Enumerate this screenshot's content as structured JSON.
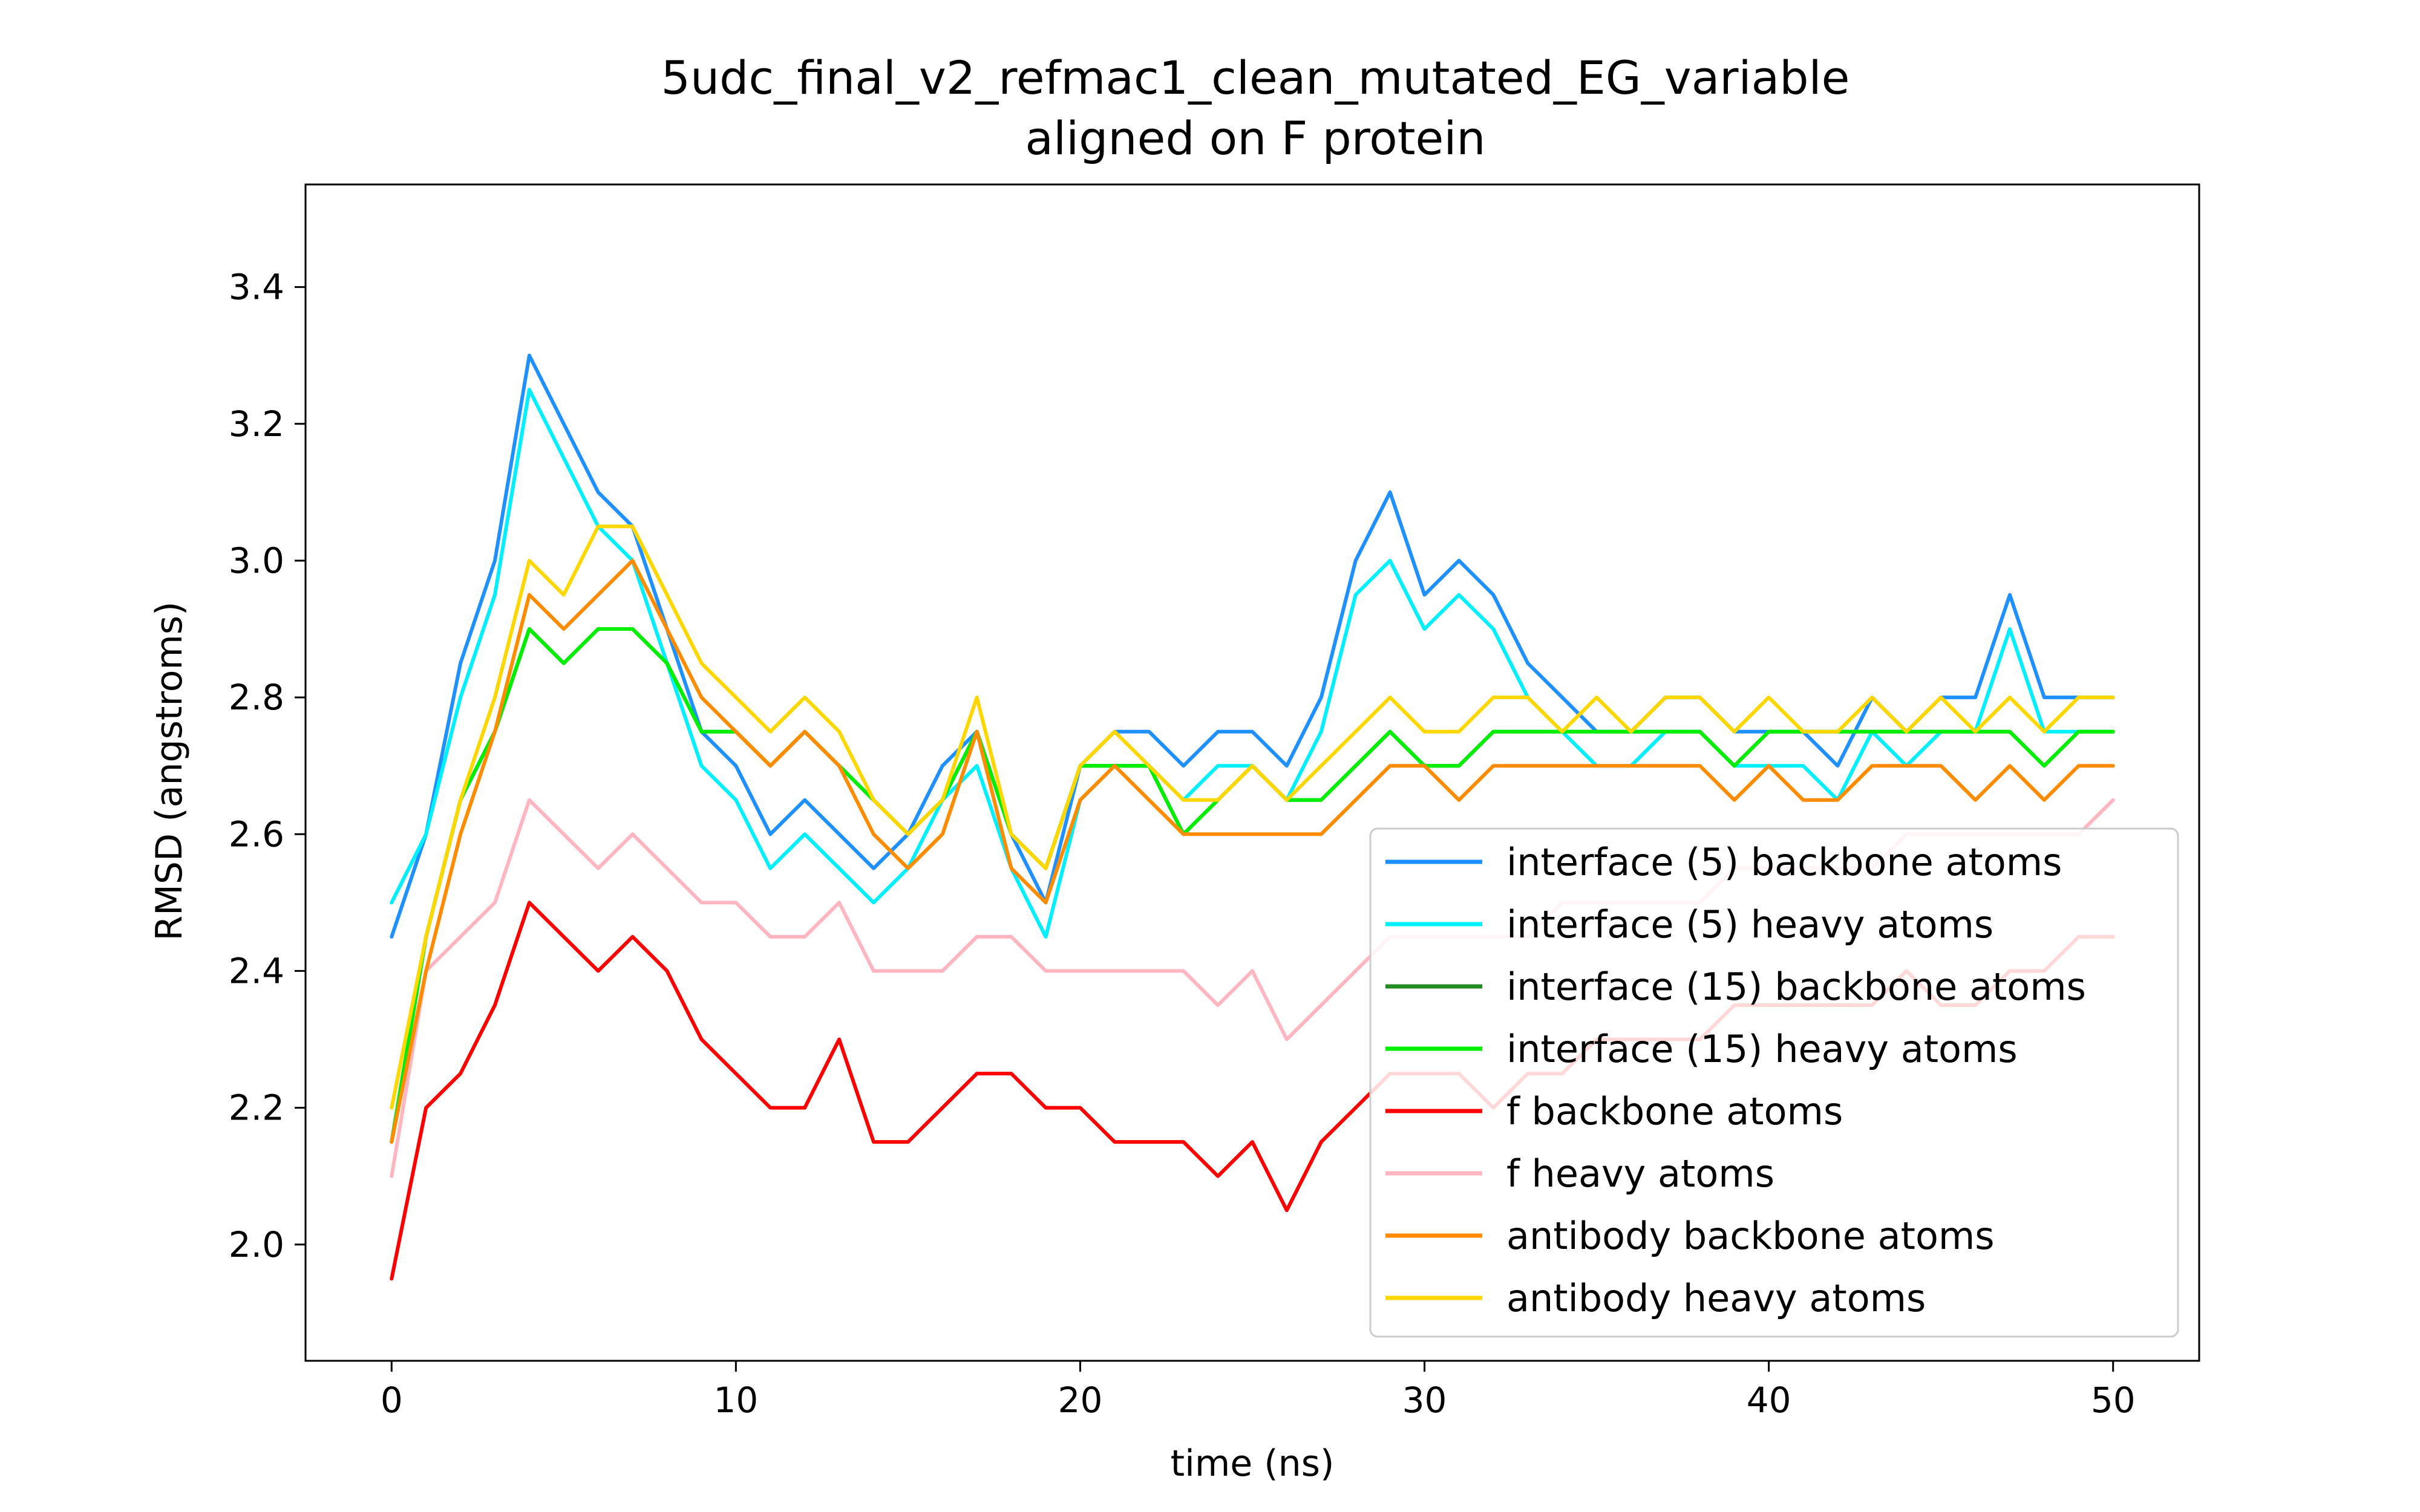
{
  "chart_data": {
    "type": "line",
    "title": [
      "5udc_final_v2_refmac1_clean_mutated_EG_variable",
      "aligned on F protein"
    ],
    "xlabel": "time (ns)",
    "ylabel": "RMSD (angstroms)",
    "xlim": [
      -2.5,
      52.5
    ],
    "ylim": [
      1.83,
      3.55
    ],
    "xticks": [
      0,
      10,
      20,
      30,
      40,
      50
    ],
    "yticks": [
      2.0,
      2.2,
      2.4,
      2.6,
      2.8,
      3.0,
      3.2,
      3.4
    ],
    "ytick_labels": [
      "2.0",
      "2.2",
      "2.4",
      "2.6",
      "2.8",
      "3.0",
      "3.2",
      "3.4"
    ],
    "grid": false,
    "legend_position": "lower-right",
    "series": [
      {
        "name": "interface (5) backbone atoms",
        "color": "#1e90ff",
        "x": [
          0,
          1,
          2,
          3,
          4,
          5,
          6,
          7,
          8,
          9,
          10,
          11,
          12,
          13,
          14,
          15,
          16,
          17,
          18,
          19,
          20,
          21,
          22,
          23,
          24,
          25,
          26,
          27,
          28,
          29,
          30,
          31,
          32,
          33,
          34,
          35,
          36,
          37,
          38,
          39,
          40,
          41,
          42,
          43,
          44,
          45,
          46,
          47,
          48,
          49,
          50
        ],
        "y": [
          2.45,
          2.6,
          2.85,
          3.0,
          3.3,
          3.2,
          3.1,
          3.05,
          2.9,
          2.75,
          2.7,
          2.6,
          2.65,
          2.6,
          2.55,
          2.6,
          2.7,
          2.75,
          2.6,
          2.5,
          2.7,
          2.75,
          2.75,
          2.7,
          2.75,
          2.75,
          2.7,
          2.8,
          3.0,
          3.1,
          2.95,
          3.0,
          2.95,
          2.85,
          2.8,
          2.75,
          2.75,
          2.8,
          2.8,
          2.75,
          2.75,
          2.75,
          2.7,
          2.8,
          2.75,
          2.8,
          2.8,
          2.95,
          2.8,
          2.8,
          2.8
        ]
      },
      {
        "name": "interface (5) heavy atoms",
        "color": "#00f0ff",
        "x": [
          0,
          1,
          2,
          3,
          4,
          5,
          6,
          7,
          8,
          9,
          10,
          11,
          12,
          13,
          14,
          15,
          16,
          17,
          18,
          19,
          20,
          21,
          22,
          23,
          24,
          25,
          26,
          27,
          28,
          29,
          30,
          31,
          32,
          33,
          34,
          35,
          36,
          37,
          38,
          39,
          40,
          41,
          42,
          43,
          44,
          45,
          46,
          47,
          48,
          49,
          50
        ],
        "y": [
          2.5,
          2.6,
          2.8,
          2.95,
          3.25,
          3.15,
          3.05,
          3.0,
          2.85,
          2.7,
          2.65,
          2.55,
          2.6,
          2.55,
          2.5,
          2.55,
          2.65,
          2.7,
          2.55,
          2.45,
          2.65,
          2.7,
          2.7,
          2.65,
          2.7,
          2.7,
          2.65,
          2.75,
          2.95,
          3.0,
          2.9,
          2.95,
          2.9,
          2.8,
          2.75,
          2.7,
          2.7,
          2.75,
          2.75,
          2.7,
          2.7,
          2.7,
          2.65,
          2.75,
          2.7,
          2.75,
          2.75,
          2.9,
          2.75,
          2.75,
          2.75
        ]
      },
      {
        "name": "interface (15) backbone atoms",
        "color": "#228b22",
        "x": [
          0,
          1,
          2,
          3,
          4,
          5,
          6,
          7,
          8,
          9,
          10,
          11,
          12,
          13,
          14,
          15,
          16,
          17,
          18,
          19,
          20,
          21,
          22,
          23,
          24,
          25,
          26,
          27,
          28,
          29,
          30,
          31,
          32,
          33,
          34,
          35,
          36,
          37,
          38,
          39,
          40,
          41,
          42,
          43,
          44,
          45,
          46,
          47,
          48,
          49,
          50
        ],
        "y": [
          2.15,
          2.45,
          2.65,
          2.75,
          2.9,
          2.85,
          2.9,
          2.9,
          2.85,
          2.75,
          2.75,
          2.7,
          2.75,
          2.7,
          2.65,
          2.6,
          2.65,
          2.75,
          2.6,
          2.55,
          2.7,
          2.7,
          2.7,
          2.6,
          2.65,
          2.7,
          2.65,
          2.65,
          2.7,
          2.75,
          2.7,
          2.7,
          2.75,
          2.75,
          2.75,
          2.75,
          2.75,
          2.75,
          2.75,
          2.7,
          2.75,
          2.75,
          2.75,
          2.75,
          2.75,
          2.75,
          2.75,
          2.75,
          2.7,
          2.75,
          2.75
        ]
      },
      {
        "name": "interface (15) heavy atoms",
        "color": "#00ee00",
        "x": [
          0,
          1,
          2,
          3,
          4,
          5,
          6,
          7,
          8,
          9,
          10,
          11,
          12,
          13,
          14,
          15,
          16,
          17,
          18,
          19,
          20,
          21,
          22,
          23,
          24,
          25,
          26,
          27,
          28,
          29,
          30,
          31,
          32,
          33,
          34,
          35,
          36,
          37,
          38,
          39,
          40,
          41,
          42,
          43,
          44,
          45,
          46,
          47,
          48,
          49,
          50
        ],
        "y": [
          2.15,
          2.45,
          2.65,
          2.75,
          2.9,
          2.85,
          2.9,
          2.9,
          2.85,
          2.75,
          2.75,
          2.7,
          2.75,
          2.7,
          2.65,
          2.6,
          2.65,
          2.75,
          2.6,
          2.55,
          2.7,
          2.7,
          2.7,
          2.6,
          2.65,
          2.7,
          2.65,
          2.65,
          2.7,
          2.75,
          2.7,
          2.7,
          2.75,
          2.75,
          2.75,
          2.75,
          2.75,
          2.75,
          2.75,
          2.7,
          2.75,
          2.75,
          2.75,
          2.75,
          2.75,
          2.75,
          2.75,
          2.75,
          2.7,
          2.75,
          2.75
        ]
      },
      {
        "name": "f backbone atoms",
        "color": "#ff0000",
        "x": [
          0,
          1,
          2,
          3,
          4,
          5,
          6,
          7,
          8,
          9,
          10,
          11,
          12,
          13,
          14,
          15,
          16,
          17,
          18,
          19,
          20,
          21,
          22,
          23,
          24,
          25,
          26,
          27,
          28,
          29,
          30,
          31,
          32,
          33,
          34,
          35,
          36,
          37,
          38,
          39,
          40,
          41,
          42,
          43,
          44,
          45,
          46,
          47,
          48,
          49,
          50
        ],
        "y": [
          1.95,
          2.2,
          2.25,
          2.35,
          2.5,
          2.45,
          2.4,
          2.45,
          2.4,
          2.3,
          2.25,
          2.2,
          2.2,
          2.3,
          2.15,
          2.15,
          2.2,
          2.25,
          2.25,
          2.2,
          2.2,
          2.15,
          2.15,
          2.15,
          2.1,
          2.15,
          2.05,
          2.15,
          2.2,
          2.25,
          2.25,
          2.25,
          2.2,
          2.25,
          2.25,
          2.3,
          2.3,
          2.3,
          2.3,
          2.35,
          2.35,
          2.35,
          2.35,
          2.35,
          2.4,
          2.35,
          2.35,
          2.4,
          2.4,
          2.45,
          2.45
        ]
      },
      {
        "name": "f heavy atoms",
        "color": "#ffb6c1",
        "x": [
          0,
          1,
          2,
          3,
          4,
          5,
          6,
          7,
          8,
          9,
          10,
          11,
          12,
          13,
          14,
          15,
          16,
          17,
          18,
          19,
          20,
          21,
          22,
          23,
          24,
          25,
          26,
          27,
          28,
          29,
          30,
          31,
          32,
          33,
          34,
          35,
          36,
          37,
          38,
          39,
          40,
          41,
          42,
          43,
          44,
          45,
          46,
          47,
          48,
          49,
          50
        ],
        "y": [
          2.1,
          2.4,
          2.45,
          2.5,
          2.65,
          2.6,
          2.55,
          2.6,
          2.55,
          2.5,
          2.5,
          2.45,
          2.45,
          2.5,
          2.4,
          2.4,
          2.4,
          2.45,
          2.45,
          2.4,
          2.4,
          2.4,
          2.4,
          2.4,
          2.35,
          2.4,
          2.3,
          2.35,
          2.4,
          2.45,
          2.45,
          2.45,
          2.45,
          2.45,
          2.5,
          2.5,
          2.5,
          2.5,
          2.5,
          2.55,
          2.55,
          2.55,
          2.55,
          2.55,
          2.6,
          2.6,
          2.6,
          2.6,
          2.6,
          2.6,
          2.65
        ]
      },
      {
        "name": "antibody backbone atoms",
        "color": "#ff8c00",
        "x": [
          0,
          1,
          2,
          3,
          4,
          5,
          6,
          7,
          8,
          9,
          10,
          11,
          12,
          13,
          14,
          15,
          16,
          17,
          18,
          19,
          20,
          21,
          22,
          23,
          24,
          25,
          26,
          27,
          28,
          29,
          30,
          31,
          32,
          33,
          34,
          35,
          36,
          37,
          38,
          39,
          40,
          41,
          42,
          43,
          44,
          45,
          46,
          47,
          48,
          49,
          50
        ],
        "y": [
          2.15,
          2.4,
          2.6,
          2.75,
          2.95,
          2.9,
          2.95,
          3.0,
          2.9,
          2.8,
          2.75,
          2.7,
          2.75,
          2.7,
          2.6,
          2.55,
          2.6,
          2.75,
          2.55,
          2.5,
          2.65,
          2.7,
          2.65,
          2.6,
          2.6,
          2.6,
          2.6,
          2.6,
          2.65,
          2.7,
          2.7,
          2.65,
          2.7,
          2.7,
          2.7,
          2.7,
          2.7,
          2.7,
          2.7,
          2.65,
          2.7,
          2.65,
          2.65,
          2.7,
          2.7,
          2.7,
          2.65,
          2.7,
          2.65,
          2.7,
          2.7
        ]
      },
      {
        "name": "antibody heavy atoms",
        "color": "#ffd700",
        "x": [
          0,
          1,
          2,
          3,
          4,
          5,
          6,
          7,
          8,
          9,
          10,
          11,
          12,
          13,
          14,
          15,
          16,
          17,
          18,
          19,
          20,
          21,
          22,
          23,
          24,
          25,
          26,
          27,
          28,
          29,
          30,
          31,
          32,
          33,
          34,
          35,
          36,
          37,
          38,
          39,
          40,
          41,
          42,
          43,
          44,
          45,
          46,
          47,
          48,
          49,
          50
        ],
        "y": [
          2.2,
          2.45,
          2.65,
          2.8,
          3.0,
          2.95,
          3.05,
          3.05,
          2.95,
          2.85,
          2.8,
          2.75,
          2.8,
          2.75,
          2.65,
          2.6,
          2.65,
          2.8,
          2.6,
          2.55,
          2.7,
          2.75,
          2.7,
          2.65,
          2.65,
          2.7,
          2.65,
          2.7,
          2.75,
          2.8,
          2.75,
          2.75,
          2.8,
          2.8,
          2.75,
          2.8,
          2.75,
          2.8,
          2.8,
          2.75,
          2.8,
          2.75,
          2.75,
          2.8,
          2.75,
          2.8,
          2.75,
          2.8,
          2.75,
          2.8,
          2.8
        ]
      }
    ]
  }
}
